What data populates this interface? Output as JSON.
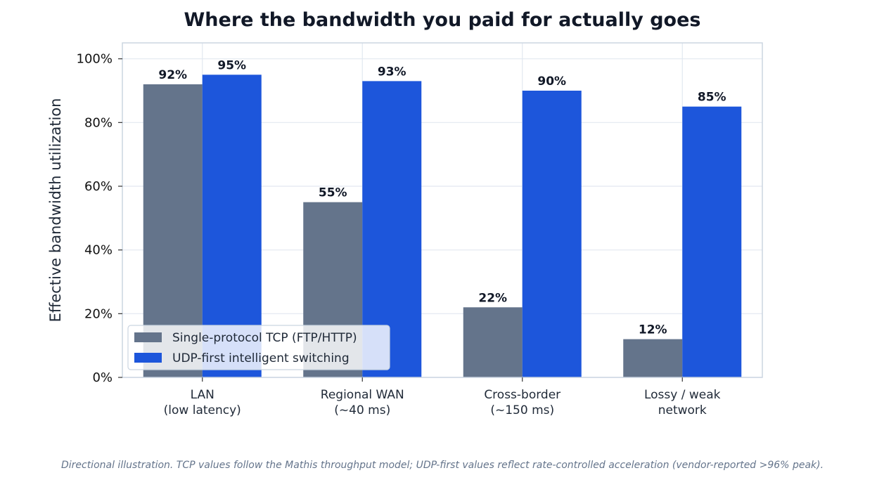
{
  "chart_data": {
    "type": "bar",
    "title": "Where the bandwidth you paid for actually goes",
    "ylabel": "Effective bandwidth utilization",
    "xlabel": "",
    "ylim": [
      0,
      105
    ],
    "yticks": [
      0,
      20,
      40,
      60,
      80,
      100
    ],
    "ytick_labels": [
      "0%",
      "20%",
      "40%",
      "60%",
      "80%",
      "100%"
    ],
    "categories": [
      [
        "LAN",
        "(low latency)"
      ],
      [
        "Regional WAN",
        "(~40 ms)"
      ],
      [
        "Cross-border",
        "(~150 ms)"
      ],
      [
        "Lossy / weak",
        "network"
      ]
    ],
    "series": [
      {
        "name": "Single-protocol TCP (FTP/HTTP)",
        "color": "#64748b",
        "values": [
          92,
          55,
          22,
          12
        ],
        "labels": [
          "92%",
          "55%",
          "22%",
          "12%"
        ]
      },
      {
        "name": "UDP-first intelligent switching",
        "color": "#1d56db",
        "values": [
          95,
          93,
          90,
          85
        ],
        "labels": [
          "95%",
          "93%",
          "90%",
          "85%"
        ]
      }
    ],
    "grid": true,
    "legend_position": "lower-left",
    "footnote": "Directional illustration. TCP values follow the Mathis throughput model; UDP-first values reflect rate-controlled acceleration (vendor-reported >96% peak)."
  }
}
